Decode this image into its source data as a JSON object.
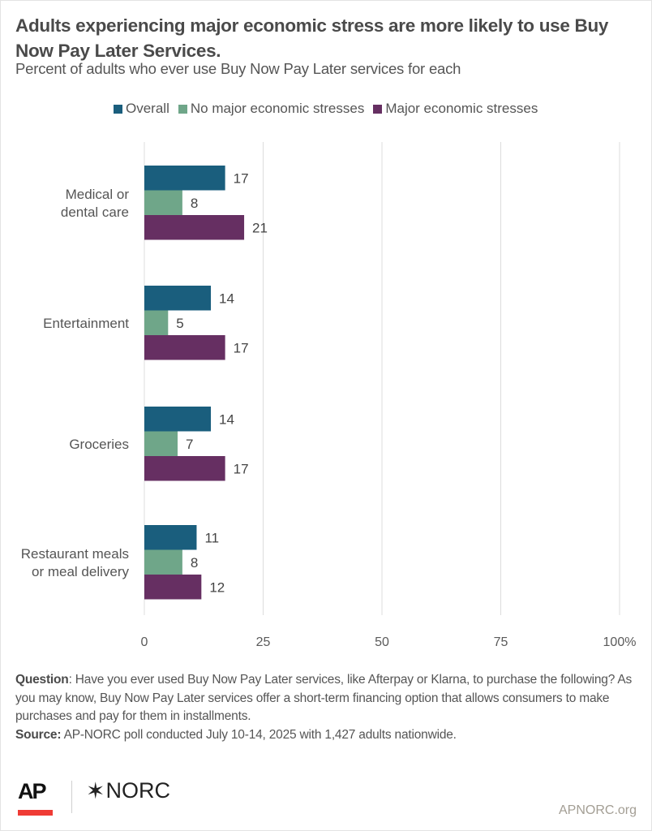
{
  "header": {
    "title": "Adults experiencing major economic stress are more likely to use Buy Now Pay Later Services.",
    "subtitle": "Percent of adults who ever use Buy Now Pay Later services for each"
  },
  "legend": [
    {
      "label": "Overall",
      "color": "#1a5e7d"
    },
    {
      "label": "No major economic stresses",
      "color": "#6fa689"
    },
    {
      "label": "Major economic stresses",
      "color": "#662f62"
    }
  ],
  "chart_data": {
    "type": "bar",
    "orientation": "horizontal",
    "title": "Adults experiencing major economic stress are more likely to use Buy Now Pay Later Services.",
    "subtitle": "Percent of adults who ever use Buy Now Pay Later services for each",
    "categories": [
      "Medical or dental care",
      "Entertainment",
      "Groceries",
      "Restaurant meals or meal delivery"
    ],
    "category_lines": [
      [
        "Medical or",
        "dental care"
      ],
      [
        "Entertainment"
      ],
      [
        "Groceries"
      ],
      [
        "Restaurant meals",
        "or meal delivery"
      ]
    ],
    "series": [
      {
        "name": "Overall",
        "color": "#1a5e7d",
        "values": [
          17,
          14,
          14,
          11
        ]
      },
      {
        "name": "No major economic stresses",
        "color": "#6fa689",
        "values": [
          8,
          5,
          7,
          8
        ]
      },
      {
        "name": "Major economic stresses",
        "color": "#662f62",
        "values": [
          21,
          17,
          17,
          12
        ]
      }
    ],
    "xlabel": "",
    "ylabel": "",
    "xlim": [
      0,
      100
    ],
    "x_ticks": [
      0,
      25,
      50,
      75,
      100
    ],
    "x_tick_labels": [
      "0",
      "25",
      "50",
      "75",
      "100%"
    ],
    "grid": true,
    "legend_position": "top"
  },
  "footer": {
    "question_label": "Question",
    "question_text": ": Have you ever used Buy Now Pay Later services, like Afterpay or Klarna, to purchase the following? As you may know, Buy Now Pay Later services offer a short-term financing option that allows consumers to make purchases and pay for them in installments.",
    "source_label": "Source:",
    "source_text": " AP-NORC poll conducted July 10-14, 2025 with 1,427 adults nationwide.",
    "logo_ap": "AP",
    "logo_norc_star": "✶",
    "logo_norc": "NORC",
    "site": "APNORC.org"
  }
}
